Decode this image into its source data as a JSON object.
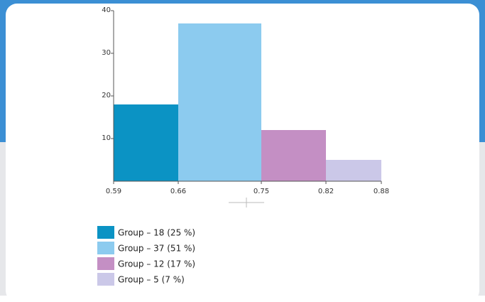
{
  "chart_data": {
    "type": "histogram",
    "bins": [
      0.59,
      0.66,
      0.75,
      0.82,
      0.88
    ],
    "counts": [
      18,
      37,
      12,
      5
    ],
    "colors": [
      "#0b93c4",
      "#8ccbef",
      "#c48fc4",
      "#cbc8e8"
    ],
    "xlim": [
      0.59,
      0.88
    ],
    "xticks": [
      0.59,
      0.66,
      0.75,
      0.82,
      0.88
    ],
    "ylim": [
      0,
      40
    ],
    "yticks": [
      10,
      20,
      30,
      40
    ],
    "legend_labels": [
      "Group  –  18 (25 %)",
      "Group  –  37 (51 %)",
      "Group  –  12 (17 %)",
      "Group  –  5 (7 %)"
    ]
  }
}
